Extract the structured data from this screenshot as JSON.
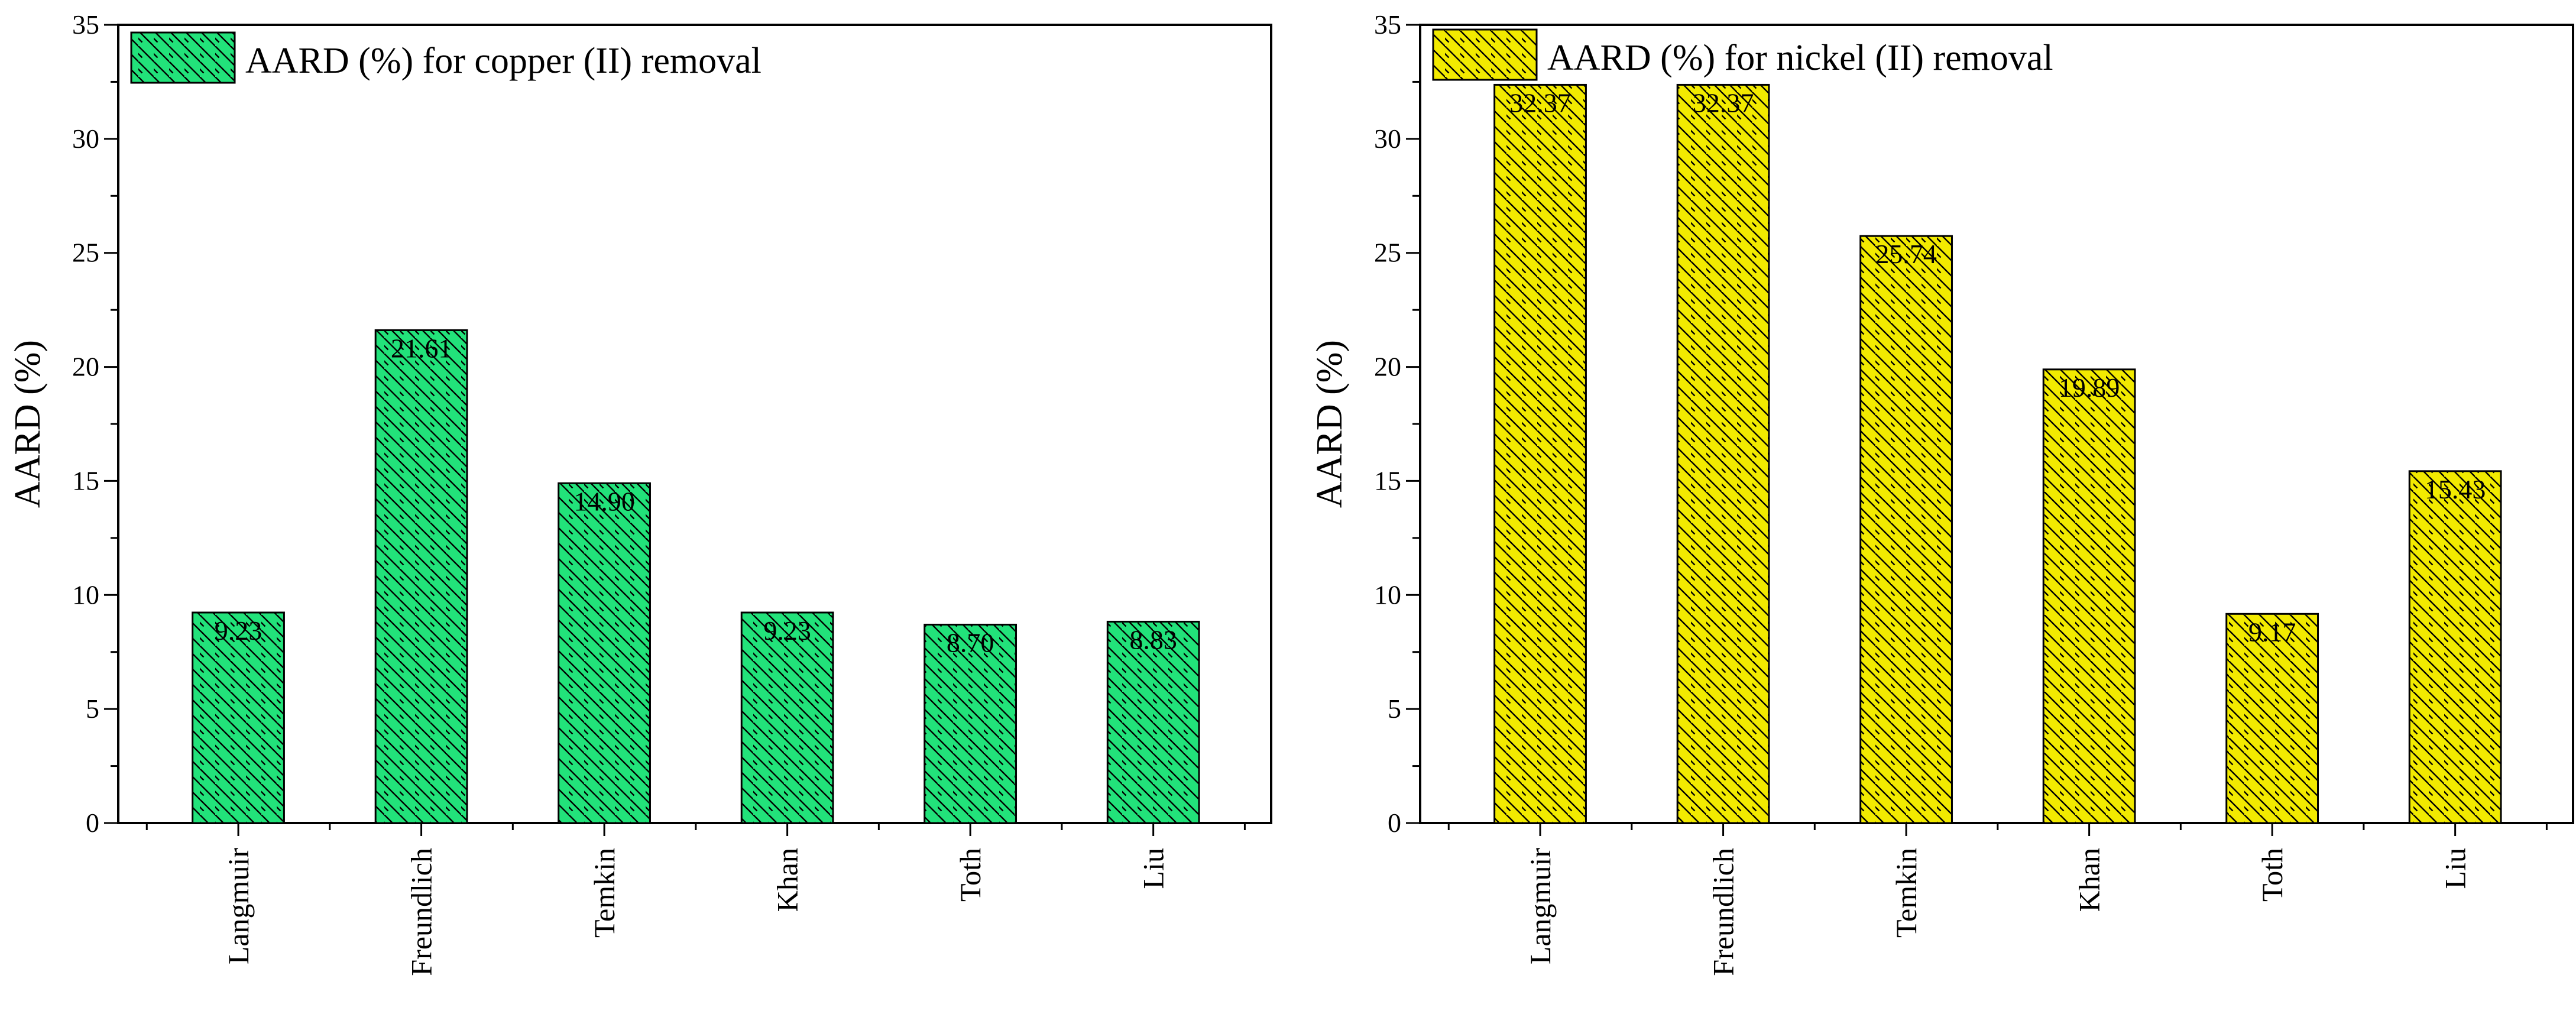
{
  "chart_data": [
    {
      "type": "bar",
      "title": "",
      "xlabel": "",
      "ylabel": "AARD (%)",
      "ylim": [
        0,
        35
      ],
      "yticks": [
        0,
        5,
        10,
        15,
        20,
        25,
        30,
        35
      ],
      "grid": false,
      "legend": {
        "label": "AARD (%) for copper (II) removal",
        "placement": "top-left"
      },
      "fill_color": "#22E27A",
      "hatch": "diagonal",
      "categories": [
        "Langmuir",
        "Freundlich",
        "Temkin",
        "Khan",
        "Toth",
        "Liu"
      ],
      "values": [
        9.23,
        21.61,
        14.9,
        9.23,
        8.7,
        8.83
      ],
      "value_labels": [
        "9.23",
        "21.61",
        "14.90",
        "9.23",
        "8.70",
        "8.83"
      ]
    },
    {
      "type": "bar",
      "title": "",
      "xlabel": "",
      "ylabel": "AARD (%)",
      "ylim": [
        0,
        35
      ],
      "yticks": [
        0,
        5,
        10,
        15,
        20,
        25,
        30,
        35
      ],
      "grid": false,
      "legend": {
        "label": "AARD (%) for nickel (II) removal",
        "placement": "top-left"
      },
      "fill_color": "#F2EA00",
      "hatch": "diagonal",
      "categories": [
        "Langmuir",
        "Freundlich",
        "Temkin",
        "Khan",
        "Toth",
        "Liu"
      ],
      "values": [
        32.37,
        32.37,
        25.74,
        19.89,
        9.17,
        15.43
      ],
      "value_labels": [
        "32.37",
        "32.37",
        "25.74",
        "19.89",
        "9.17",
        "15.43"
      ]
    }
  ]
}
